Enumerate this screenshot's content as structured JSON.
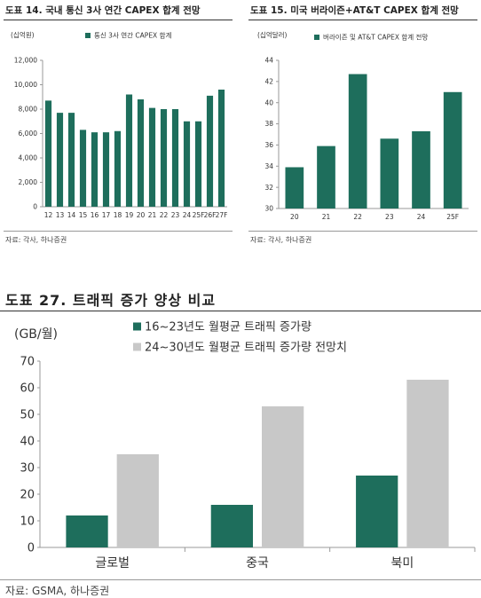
{
  "fig14": {
    "title": "도표 14. 국내 통신 3사 연간 CAPEX 합계 전망",
    "source": "자료: 각사, 하나증권"
  },
  "fig15": {
    "title": "도표 15. 미국 버라이즌+AT&T CAPEX 합계 전망",
    "source": "자료: 각사, 하나증권"
  },
  "fig27": {
    "title": "도표 27. 트래픽 증가 양상 비교",
    "source": "자료: GSMA, 하나증권"
  },
  "colors": {
    "green": "#1e6e5c",
    "gray": "#c8c8c8"
  },
  "chart_data": [
    {
      "type": "bar",
      "unit_label": "(십억원)",
      "categories": [
        "12",
        "13",
        "14",
        "15",
        "16",
        "17",
        "18",
        "19",
        "20",
        "21",
        "22",
        "23",
        "24",
        "25F",
        "26F",
        "27F"
      ],
      "series": [
        {
          "name": "통신 3사 연간 CAPEX 합계",
          "values": [
            8700,
            7700,
            7700,
            6300,
            6100,
            6100,
            6200,
            9200,
            8800,
            8100,
            8000,
            8000,
            7000,
            7000,
            9100,
            9600
          ]
        }
      ],
      "ylim": [
        0,
        12000
      ],
      "yticks": [
        "0",
        "2,000",
        "4,000",
        "6,000",
        "8,000",
        "10,000",
        "12,000"
      ],
      "grid": false,
      "legend": "top"
    },
    {
      "type": "bar",
      "unit_label": "(십억달러)",
      "categories": [
        "20",
        "21",
        "22",
        "23",
        "24",
        "25F"
      ],
      "series": [
        {
          "name": "버라이즌 및 AT&T CAPEX 합계 전망",
          "values": [
            33.9,
            35.9,
            42.7,
            36.6,
            37.3,
            41.0
          ]
        }
      ],
      "ylim": [
        30,
        44
      ],
      "yticks": [
        "30",
        "32",
        "34",
        "36",
        "38",
        "40",
        "42",
        "44"
      ],
      "grid": false,
      "legend": "top"
    },
    {
      "type": "bar",
      "unit_label": "(GB/월)",
      "categories": [
        "글로벌",
        "중국",
        "북미"
      ],
      "series": [
        {
          "name": "16~23년도 월평균 트래픽 증가량",
          "values": [
            12,
            16,
            27
          ]
        },
        {
          "name": "24~30년도 월평균 트래픽 증가량 전망치",
          "values": [
            35,
            53,
            63
          ]
        }
      ],
      "ylim": [
        0,
        70
      ],
      "yticks": [
        "0",
        "10",
        "20",
        "30",
        "40",
        "50",
        "60",
        "70"
      ],
      "grid": false,
      "legend": "top"
    }
  ]
}
